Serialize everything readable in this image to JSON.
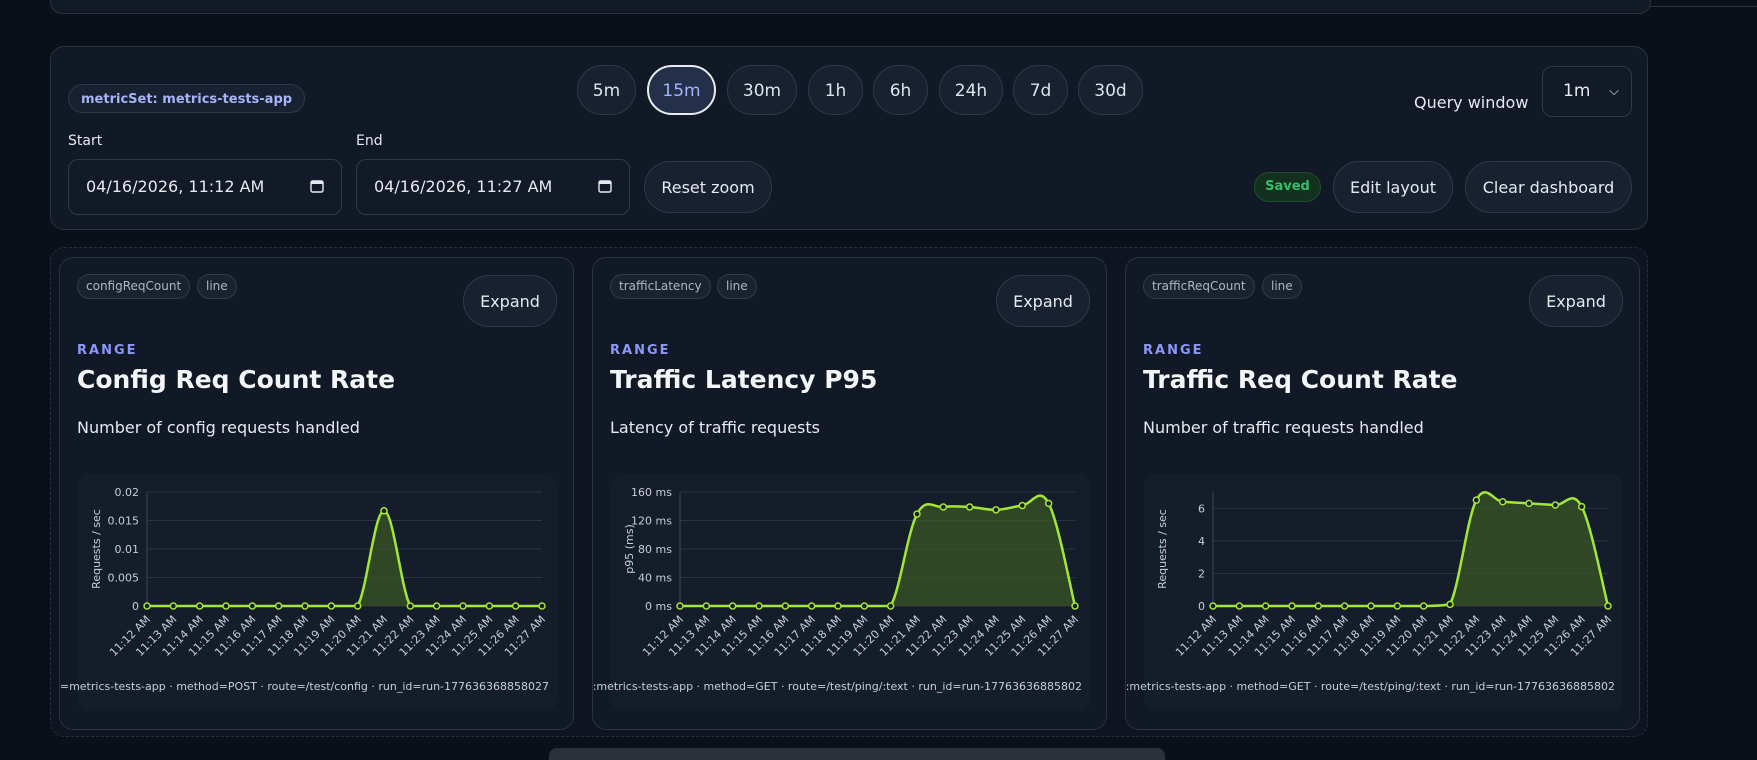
{
  "toolbar": {
    "metric_set": "metricSet: metrics-tests-app",
    "ranges": [
      "5m",
      "15m",
      "30m",
      "1h",
      "6h",
      "24h",
      "7d",
      "30d"
    ],
    "active_range": "15m",
    "query_window_label": "Query window",
    "query_window_value": "1m",
    "start_label": "Start",
    "start_value": "04/16/2026, 11:12 AM",
    "end_label": "End",
    "end_value": "04/16/2026, 11:27 AM",
    "reset_zoom": "Reset zoom",
    "saved_badge": "Saved",
    "edit_layout": "Edit layout",
    "clear_dashboard": "Clear dashboard"
  },
  "theme": {
    "accent": "#a3e635",
    "fill": "#3a5525",
    "kicker": "#8b98f7"
  },
  "panels": [
    {
      "tag_metric": "configReqCount",
      "tag_type": "line",
      "expand_label": "Expand",
      "kicker": "RANGE",
      "title": "Config Req Count Rate",
      "description": "Number of config requests handled",
      "legend": "=metrics-tests-app · method=POST · route=/test/config · run_id=run-177636368858027"
    },
    {
      "tag_metric": "trafficLatency",
      "tag_type": "line",
      "expand_label": "Expand",
      "kicker": "RANGE",
      "title": "Traffic Latency P95",
      "description": "Latency of traffic requests",
      "legend": ":metrics-tests-app · method=GET · route=/test/ping/:text · run_id=run-17763636885802"
    },
    {
      "tag_metric": "trafficReqCount",
      "tag_type": "line",
      "expand_label": "Expand",
      "kicker": "RANGE",
      "title": "Traffic Req Count Rate",
      "description": "Number of traffic requests handled",
      "legend": ":metrics-tests-app · method=GET · route=/test/ping/:text · run_id=run-17763636885802"
    }
  ],
  "chart_data": [
    {
      "type": "line",
      "ylabel": "Requests / sec",
      "ylim": [
        0,
        0.02
      ],
      "yticks": [
        0,
        0.005,
        0.01,
        0.015,
        0.02
      ],
      "ytick_labels": [
        "0",
        "0.005",
        "0.01",
        "0.015",
        "0.02"
      ],
      "x": [
        "11:12 AM",
        "11:13 AM",
        "11:14 AM",
        "11:15 AM",
        "11:16 AM",
        "11:17 AM",
        "11:18 AM",
        "11:19 AM",
        "11:20 AM",
        "11:21 AM",
        "11:22 AM",
        "11:23 AM",
        "11:24 AM",
        "11:25 AM",
        "11:26 AM",
        "11:27 AM"
      ],
      "values": [
        0,
        0,
        0,
        0,
        0,
        0,
        0,
        0,
        0,
        0.0167,
        0,
        0,
        0,
        0,
        0,
        0
      ],
      "grid": true
    },
    {
      "type": "line",
      "ylabel": "p95 (ms)",
      "ylim": [
        0,
        160
      ],
      "yticks": [
        0,
        40,
        80,
        120,
        160
      ],
      "ytick_labels": [
        "0 ms",
        "40 ms",
        "80 ms",
        "120 ms",
        "160 ms"
      ],
      "x": [
        "11:12 AM",
        "11:13 AM",
        "11:14 AM",
        "11:15 AM",
        "11:16 AM",
        "11:17 AM",
        "11:18 AM",
        "11:19 AM",
        "11:20 AM",
        "11:21 AM",
        "11:22 AM",
        "11:23 AM",
        "11:24 AM",
        "11:25 AM",
        "11:26 AM",
        "11:27 AM"
      ],
      "values": [
        0,
        0,
        0,
        0,
        0,
        0,
        0,
        0,
        0,
        129,
        139,
        139,
        135,
        141,
        144,
        0
      ],
      "grid": true
    },
    {
      "type": "line",
      "ylabel": "Requests / sec",
      "ylim": [
        0,
        7
      ],
      "yticks": [
        0,
        2,
        4,
        6
      ],
      "ytick_labels": [
        "0",
        "2",
        "4",
        "6"
      ],
      "x": [
        "11:12 AM",
        "11:13 AM",
        "11:14 AM",
        "11:15 AM",
        "11:16 AM",
        "11:17 AM",
        "11:18 AM",
        "11:19 AM",
        "11:20 AM",
        "11:21 AM",
        "11:22 AM",
        "11:23 AM",
        "11:24 AM",
        "11:25 AM",
        "11:26 AM",
        "11:27 AM"
      ],
      "values": [
        0,
        0,
        0,
        0,
        0,
        0,
        0,
        0,
        0,
        0.1,
        6.5,
        6.4,
        6.3,
        6.2,
        6.1,
        0
      ],
      "grid": true
    }
  ]
}
